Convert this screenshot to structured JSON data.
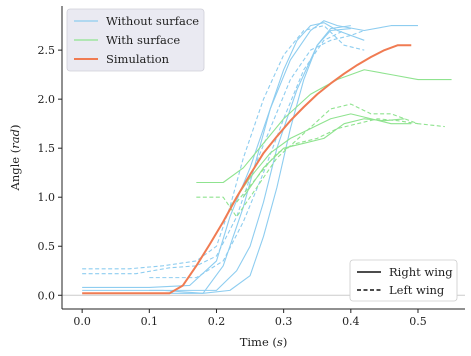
{
  "chart_data": {
    "type": "line",
    "xlabel": "Time ",
    "xlabel_unit": "s",
    "ylabel": "Angle ",
    "ylabel_unit": "rad",
    "xlim": [
      -0.03,
      0.57
    ],
    "ylim": [
      -0.14,
      2.95
    ],
    "x_ticks": [
      0.0,
      0.1,
      0.2,
      0.3,
      0.4,
      0.5
    ],
    "x_tick_labels": [
      "0.0",
      "0.1",
      "0.2",
      "0.3",
      "0.4",
      "0.5"
    ],
    "y_ticks": [
      0.0,
      0.5,
      1.0,
      1.5,
      2.0,
      2.5
    ],
    "y_tick_labels": [
      "0.0",
      "0.5",
      "1.0",
      "1.5",
      "2.0",
      "2.5"
    ],
    "grid": false,
    "reference_line": {
      "y": 0.0,
      "color": "#cccccc"
    },
    "legend_series": {
      "placement": "top-left",
      "items": [
        {
          "label": "Without surface",
          "color": "#8ecdf0"
        },
        {
          "label": "With surface",
          "color": "#8fe38f"
        },
        {
          "label": "Simulation",
          "color": "#f07b52"
        }
      ]
    },
    "legend_style": {
      "placement": "bottom-right",
      "items": [
        {
          "label": "Right wing",
          "dash": "solid"
        },
        {
          "label": "Left wing",
          "dash": "dashed"
        }
      ]
    },
    "series": [
      {
        "group": "Without surface",
        "color": "#8ecdf0",
        "dash": "solid",
        "x": [
          0.0,
          0.1,
          0.16,
          0.2,
          0.22,
          0.25,
          0.28,
          0.31,
          0.34,
          0.36,
          0.38,
          0.42,
          0.46,
          0.5
        ],
        "y": [
          0.08,
          0.08,
          0.1,
          0.35,
          0.8,
          1.3,
          1.9,
          2.4,
          2.7,
          2.8,
          2.75,
          2.7,
          2.75,
          2.75
        ]
      },
      {
        "group": "Without surface",
        "color": "#8ecdf0",
        "dash": "solid",
        "x": [
          0.0,
          0.12,
          0.18,
          0.21,
          0.24,
          0.26,
          0.28,
          0.3,
          0.32,
          0.34,
          0.36,
          0.38,
          0.42
        ],
        "y": [
          0.05,
          0.05,
          0.02,
          0.3,
          0.9,
          1.4,
          1.9,
          2.3,
          2.6,
          2.75,
          2.78,
          2.7,
          2.6
        ]
      },
      {
        "group": "Without surface",
        "color": "#8ecdf0",
        "dash": "solid",
        "x": [
          0.1,
          0.16,
          0.2,
          0.23,
          0.25,
          0.27,
          0.29,
          0.32,
          0.35,
          0.37,
          0.4
        ],
        "y": [
          0.05,
          0.05,
          0.05,
          0.25,
          0.5,
          0.95,
          1.5,
          2.1,
          2.55,
          2.72,
          2.75
        ]
      },
      {
        "group": "Without surface",
        "color": "#8ecdf0",
        "dash": "solid",
        "x": [
          0.1,
          0.18,
          0.22,
          0.25,
          0.27,
          0.29,
          0.31,
          0.33,
          0.35,
          0.37,
          0.4
        ],
        "y": [
          0.02,
          0.02,
          0.05,
          0.2,
          0.6,
          1.1,
          1.7,
          2.2,
          2.55,
          2.7,
          2.72
        ]
      },
      {
        "group": "Without surface",
        "color": "#8ecdf0",
        "dash": "dashed",
        "x": [
          0.0,
          0.07,
          0.12,
          0.17,
          0.2,
          0.22,
          0.24,
          0.27,
          0.3,
          0.33,
          0.36,
          0.39,
          0.42
        ],
        "y": [
          0.27,
          0.27,
          0.3,
          0.35,
          0.5,
          0.9,
          1.4,
          2.0,
          2.45,
          2.7,
          2.75,
          2.55,
          2.5
        ]
      },
      {
        "group": "Without surface",
        "color": "#8ecdf0",
        "dash": "dashed",
        "x": [
          0.0,
          0.08,
          0.13,
          0.17,
          0.2,
          0.23,
          0.25,
          0.28,
          0.31,
          0.34,
          0.37,
          0.4,
          0.42
        ],
        "y": [
          0.22,
          0.22,
          0.28,
          0.3,
          0.4,
          0.8,
          1.2,
          1.7,
          2.2,
          2.5,
          2.6,
          2.65,
          2.7
        ]
      },
      {
        "group": "Without surface",
        "color": "#8ecdf0",
        "dash": "dashed",
        "x": [
          0.1,
          0.17,
          0.21,
          0.24,
          0.27,
          0.3,
          0.33,
          0.36,
          0.39
        ],
        "y": [
          0.18,
          0.18,
          0.35,
          0.75,
          1.25,
          1.8,
          2.3,
          2.6,
          2.7
        ]
      },
      {
        "group": "With surface",
        "color": "#8fe38f",
        "dash": "solid",
        "x": [
          0.17,
          0.21,
          0.24,
          0.27,
          0.3,
          0.34,
          0.38,
          0.42,
          0.46,
          0.5,
          0.55
        ],
        "y": [
          1.15,
          1.15,
          1.3,
          1.55,
          1.8,
          2.05,
          2.2,
          2.3,
          2.25,
          2.2,
          2.2
        ]
      },
      {
        "group": "With surface",
        "color": "#8fe38f",
        "dash": "solid",
        "x": [
          0.22,
          0.25,
          0.28,
          0.31,
          0.34,
          0.37,
          0.4,
          0.43,
          0.46,
          0.49
        ],
        "y": [
          0.9,
          1.2,
          1.45,
          1.6,
          1.7,
          1.8,
          1.85,
          1.8,
          1.75,
          1.75
        ]
      },
      {
        "group": "With surface",
        "color": "#8fe38f",
        "dash": "solid",
        "x": [
          0.24,
          0.27,
          0.3,
          0.33,
          0.36,
          0.39,
          0.42,
          0.45,
          0.48
        ],
        "y": [
          1.0,
          1.3,
          1.5,
          1.55,
          1.6,
          1.75,
          1.8,
          1.78,
          1.8
        ]
      },
      {
        "group": "With surface",
        "color": "#8fe38f",
        "dash": "dashed",
        "x": [
          0.17,
          0.21,
          0.23,
          0.26,
          0.29,
          0.33,
          0.37,
          0.4,
          0.43,
          0.46,
          0.5,
          0.54
        ],
        "y": [
          1.0,
          1.0,
          0.8,
          1.1,
          1.4,
          1.65,
          1.9,
          1.95,
          1.85,
          1.85,
          1.75,
          1.72
        ]
      },
      {
        "group": "With surface",
        "color": "#8fe38f",
        "dash": "dashed",
        "x": [
          0.23,
          0.26,
          0.29,
          0.32,
          0.35,
          0.38,
          0.41,
          0.44,
          0.47,
          0.5
        ],
        "y": [
          0.95,
          1.2,
          1.45,
          1.55,
          1.6,
          1.7,
          1.75,
          1.8,
          1.78,
          1.75
        ]
      },
      {
        "group": "Simulation",
        "color": "#f07b52",
        "dash": "solid",
        "x": [
          0.0,
          0.09,
          0.11,
          0.13,
          0.15,
          0.17,
          0.19,
          0.21,
          0.23,
          0.25,
          0.27,
          0.29,
          0.31,
          0.33,
          0.35,
          0.37,
          0.39,
          0.41,
          0.43,
          0.45,
          0.47,
          0.49
        ],
        "y": [
          0.02,
          0.02,
          0.02,
          0.02,
          0.1,
          0.3,
          0.52,
          0.75,
          1.0,
          1.23,
          1.45,
          1.62,
          1.78,
          1.92,
          2.05,
          2.16,
          2.26,
          2.35,
          2.43,
          2.5,
          2.55,
          2.55
        ]
      }
    ]
  }
}
